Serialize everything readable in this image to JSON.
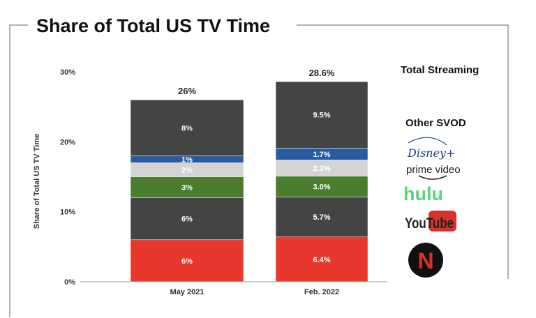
{
  "chart_data": {
    "type": "bar",
    "stacked": true,
    "title": "Share of Total US TV Time",
    "xlabel": "",
    "ylabel": "Share of Total US TV Time",
    "ylim": [
      0,
      30
    ],
    "yticks": [
      "0%",
      "10%",
      "20%",
      "30%"
    ],
    "categories": [
      "May 2021",
      "Feb. 2022"
    ],
    "totals": [
      "26%",
      "28.6%"
    ],
    "series": [
      {
        "name": "Netflix",
        "color": "#e8372c",
        "values": [
          6,
          6.4
        ],
        "labels": [
          "6%",
          "6.4%"
        ]
      },
      {
        "name": "YouTube",
        "color": "#444444",
        "values": [
          6,
          5.7
        ],
        "labels": [
          "6%",
          "5.7%"
        ]
      },
      {
        "name": "hulu",
        "color": "#4a7d2e",
        "values": [
          3,
          3.0
        ],
        "labels": [
          "3%",
          "3.0%"
        ]
      },
      {
        "name": "prime video",
        "color": "#d4d4d4",
        "values": [
          2,
          2.3
        ],
        "labels": [
          "2%",
          "2.3%"
        ]
      },
      {
        "name": "Disney+",
        "color": "#2a5ba0",
        "values": [
          1,
          1.7
        ],
        "labels": [
          "1%",
          "1.7%"
        ]
      },
      {
        "name": "Other SVOD",
        "color": "#444444",
        "values": [
          8,
          9.5
        ],
        "labels": [
          "8%",
          "9.5%"
        ]
      }
    ],
    "legend": {
      "placement": "right",
      "total_label": "Total Streaming",
      "other_label": "Other SVOD",
      "logos": [
        "Disney+",
        "prime video",
        "hulu",
        "YouTube",
        "N"
      ]
    }
  }
}
